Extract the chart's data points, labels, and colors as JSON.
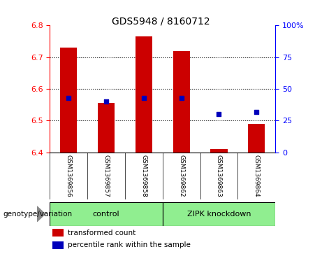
{
  "title": "GDS5948 / 8160712",
  "samples": [
    "GSM1369856",
    "GSM1369857",
    "GSM1369858",
    "GSM1369862",
    "GSM1369863",
    "GSM1369864"
  ],
  "bar_tops": [
    6.73,
    6.555,
    6.765,
    6.72,
    6.41,
    6.49
  ],
  "bar_bottom": 6.4,
  "blue_pct": [
    43,
    40,
    43,
    43,
    30,
    32
  ],
  "ylim_left": [
    6.4,
    6.8
  ],
  "ylim_right": [
    0,
    100
  ],
  "yticks_left": [
    6.4,
    6.5,
    6.6,
    6.7,
    6.8
  ],
  "yticks_right": [
    0,
    25,
    50,
    75,
    100
  ],
  "ytick_labels_right": [
    "0",
    "25",
    "50",
    "75",
    "100%"
  ],
  "bar_color": "#CC0000",
  "blue_color": "#0000BB",
  "genotype_label": "genotype/variation",
  "legend_bar_label": "transformed count",
  "legend_dot_label": "percentile rank within the sample",
  "group_labels": [
    "control",
    "ZIPK knockdown"
  ],
  "group_color": "#90EE90",
  "xlabel_bg": "#cccccc",
  "figsize": [
    4.61,
    3.63
  ],
  "dpi": 100
}
